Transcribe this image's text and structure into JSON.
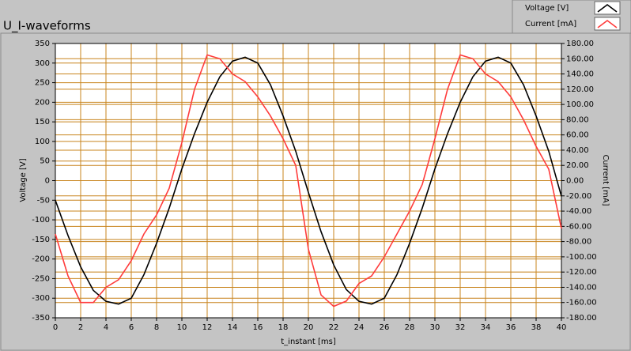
{
  "chart_data": {
    "type": "line",
    "title": "U_I-waveforms",
    "xlabel": "t_instant [ms]",
    "ylabel": "Voltage [V]",
    "y2label": "Current [mA]",
    "x": [
      0,
      1,
      2,
      3,
      4,
      5,
      6,
      7,
      8,
      9,
      10,
      11,
      12,
      13,
      14,
      15,
      16,
      17,
      18,
      19,
      20,
      21,
      22,
      23,
      24,
      25,
      26,
      27,
      28,
      29,
      30,
      31,
      32,
      33,
      34,
      35,
      36,
      37,
      38,
      39,
      40
    ],
    "series": [
      {
        "name": "Voltage [V]",
        "color": "#000000",
        "values": [
          -50,
          -140,
          -220,
          -280,
          -308,
          -315,
          -300,
          -240,
          -160,
          -70,
          30,
          120,
          200,
          265,
          305,
          315,
          300,
          245,
          165,
          75,
          -30,
          -130,
          -215,
          -278,
          -308,
          -315,
          -300,
          -240,
          -160,
          -70,
          30,
          120,
          200,
          265,
          305,
          315,
          300,
          245,
          165,
          75,
          -40
        ]
      },
      {
        "name": "Current [mA]",
        "color": "#ff3c3c",
        "axis": "y2",
        "values": [
          -70,
          -125,
          -160,
          -160,
          -140,
          -130,
          -105,
          -70,
          -45,
          -10,
          50,
          120,
          165,
          160,
          140,
          130,
          110,
          85,
          55,
          20,
          -90,
          -150,
          -165,
          -158,
          -135,
          -125,
          -100,
          -70,
          -40,
          -5,
          55,
          120,
          165,
          160,
          140,
          130,
          110,
          80,
          45,
          15,
          -63
        ]
      }
    ],
    "xlim": [
      0,
      40
    ],
    "xticks": [
      0,
      2,
      4,
      6,
      8,
      10,
      12,
      14,
      16,
      18,
      20,
      22,
      24,
      26,
      28,
      30,
      32,
      34,
      36,
      38,
      40
    ],
    "ylim": [
      -350,
      350
    ],
    "yticks": [
      -350,
      -300,
      -250,
      -200,
      -150,
      -100,
      -50,
      0,
      50,
      100,
      150,
      200,
      250,
      300,
      350
    ],
    "y2lim": [
      -180,
      180
    ],
    "y2ticks": [
      {
        "value": -180,
        "label": "-180.00"
      },
      {
        "value": -160,
        "label": "-160.00"
      },
      {
        "value": -140,
        "label": "-140.00"
      },
      {
        "value": -120,
        "label": "-120.00"
      },
      {
        "value": -100,
        "label": "-100.00"
      },
      {
        "value": -80,
        "label": "-80.00"
      },
      {
        "value": -60,
        "label": "-60.00"
      },
      {
        "value": -40,
        "label": "-40.00"
      },
      {
        "value": -20,
        "label": "-20.00"
      },
      {
        "value": 0,
        "label": "0.00"
      },
      {
        "value": 20,
        "label": "20.00"
      },
      {
        "value": 40,
        "label": "40.00"
      },
      {
        "value": 60,
        "label": "60.00"
      },
      {
        "value": 80,
        "label": "80.00"
      },
      {
        "value": 100,
        "label": "100.00"
      },
      {
        "value": 120,
        "label": "120.00"
      },
      {
        "value": 140,
        "label": "140.00"
      },
      {
        "value": 160,
        "label": "160.00"
      },
      {
        "value": 180,
        "label": "180.00"
      }
    ],
    "grid": true,
    "grid_color": "#c8841e",
    "legend": "top-right"
  }
}
